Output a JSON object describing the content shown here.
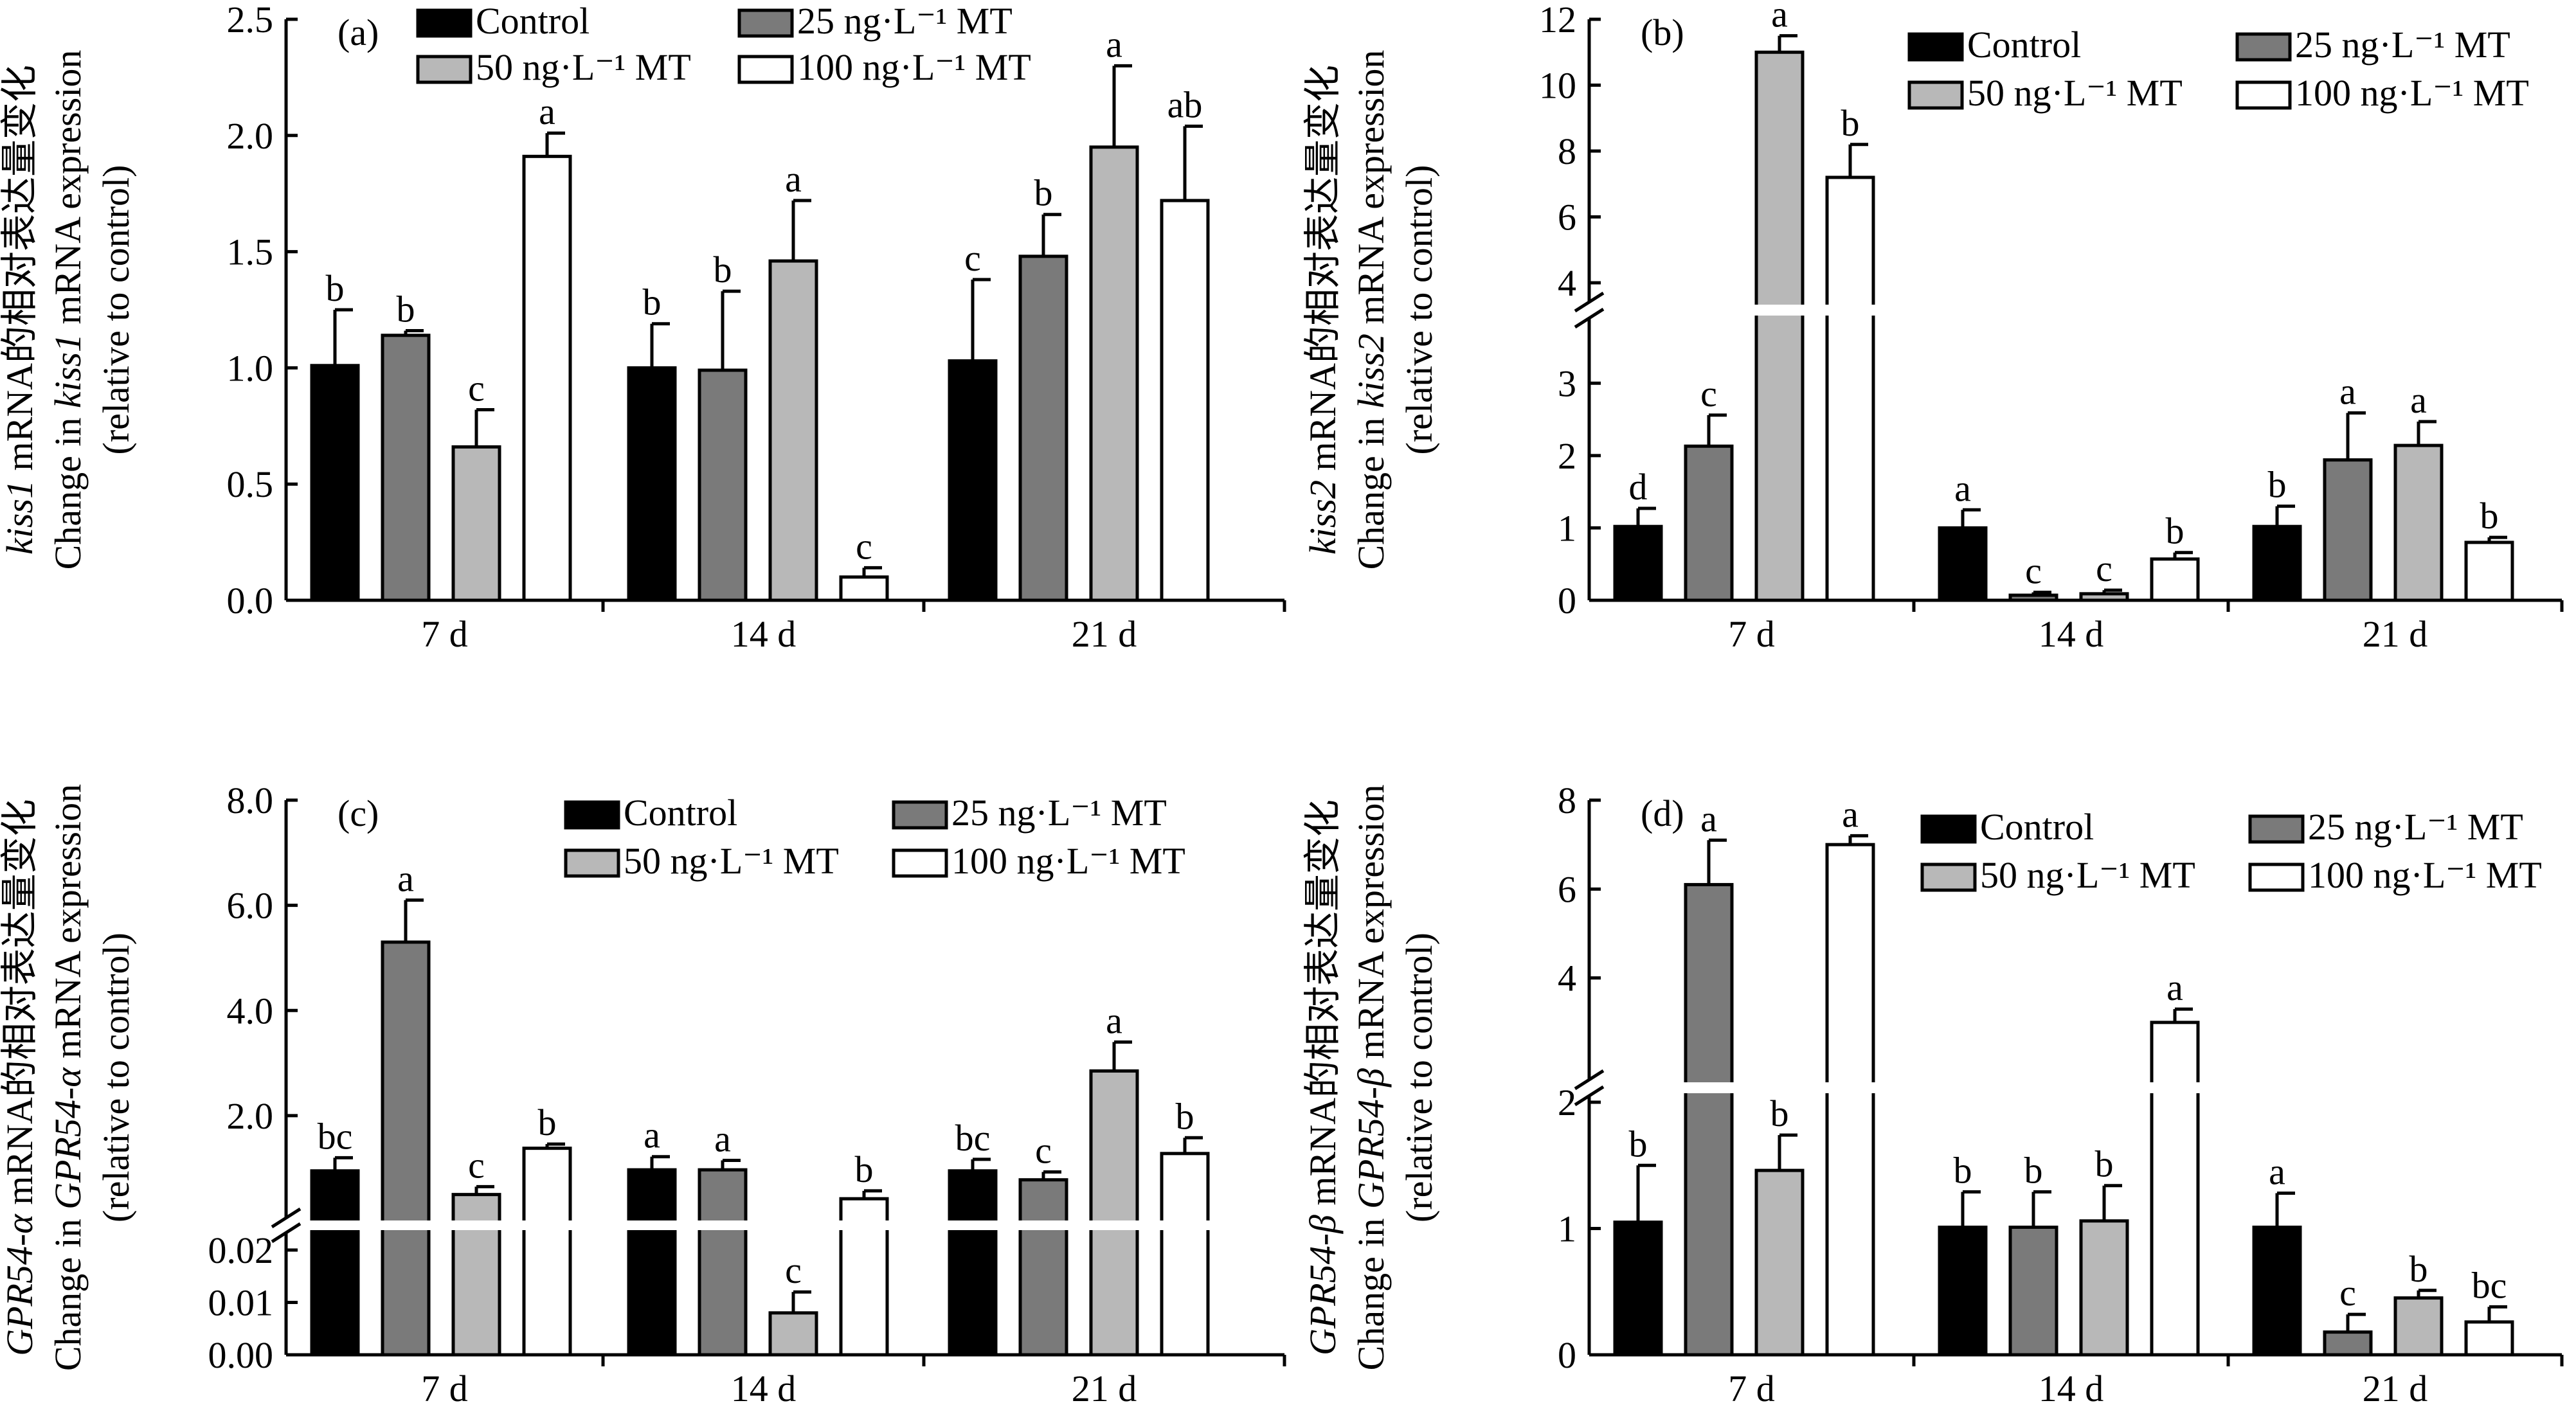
{
  "chart_data": [
    {
      "type": "bar",
      "panel": "(a)",
      "ylabel": {
        "gene": "kiss1",
        "cn": "mRNA的相对表达量变化",
        "en_prefix": "Change in ",
        "en_suffix": " mRNA expression",
        "sub": "(relative to control)"
      },
      "categories": [
        "7 d",
        "14 d",
        "21 d"
      ],
      "series": [
        {
          "name": "Control",
          "values": [
            1.01,
            1.0,
            1.03
          ],
          "errors": [
            0.24,
            0.19,
            0.35
          ],
          "letters": [
            "b",
            "b",
            "c"
          ]
        },
        {
          "name": "25 ng·L⁻¹ MT",
          "values": [
            1.14,
            0.99,
            1.48
          ],
          "errors": [
            0.02,
            0.34,
            0.18
          ],
          "letters": [
            "b",
            "b",
            "b"
          ]
        },
        {
          "name": "50 ng·L⁻¹ MT",
          "values": [
            0.66,
            1.46,
            1.95
          ],
          "errors": [
            0.16,
            0.26,
            0.35
          ],
          "letters": [
            "c",
            "a",
            "a"
          ]
        },
        {
          "name": "100 ng·L⁻¹ MT",
          "values": [
            1.91,
            0.1,
            1.72
          ],
          "errors": [
            0.1,
            0.04,
            0.32
          ],
          "letters": [
            "a",
            "c",
            "ab"
          ]
        }
      ],
      "yticks": [
        "0.0",
        "0.5",
        "1.0",
        "1.5",
        "2.0",
        "2.5"
      ],
      "ylim": [
        0,
        2.5
      ]
    },
    {
      "type": "bar",
      "panel": "(b)",
      "ylabel": {
        "gene": "kiss2",
        "cn": "mRNA的相对表达量变化",
        "en_prefix": "Change in ",
        "en_suffix": " mRNA expression",
        "sub": "(relative to control)"
      },
      "categories": [
        "7 d",
        "14 d",
        "21 d"
      ],
      "axis_break": {
        "lower": [
          0,
          3.5
        ],
        "upper": [
          4,
          12
        ]
      },
      "series": [
        {
          "name": "Control",
          "values": [
            1.02,
            1.0,
            1.02
          ],
          "errors": [
            0.25,
            0.25,
            0.28
          ],
          "letters": [
            "d",
            "a",
            "b"
          ]
        },
        {
          "name": "25 ng·L⁻¹ MT",
          "values": [
            2.13,
            0.07,
            1.94
          ],
          "errors": [
            0.43,
            0.04,
            0.65
          ],
          "letters": [
            "c",
            "c",
            "a"
          ]
        },
        {
          "name": "50 ng·L⁻¹ MT",
          "values": [
            11.0,
            0.09,
            2.14
          ],
          "errors": [
            0.5,
            0.05,
            0.33
          ],
          "letters": [
            "a",
            "c",
            "a"
          ]
        },
        {
          "name": "100 ng·L⁻¹ MT",
          "values": [
            7.2,
            0.57,
            0.8
          ],
          "errors": [
            1.0,
            0.09,
            0.07
          ],
          "letters": [
            "b",
            "b",
            "b"
          ]
        }
      ],
      "yticks_lower": [
        "0",
        "1",
        "2",
        "3"
      ],
      "yticks_upper": [
        "4",
        "6",
        "8",
        "10",
        "12"
      ]
    },
    {
      "type": "bar",
      "panel": "(c)",
      "ylabel": {
        "gene": "GPR54-α",
        "cn": "mRNA的相对表达量变化",
        "en_prefix": "Change in ",
        "en_suffix": " mRNA expression",
        "sub": "(relative to control)"
      },
      "categories": [
        "7 d",
        "14 d",
        "21 d"
      ],
      "axis_break": {
        "lower": [
          0,
          0.02
        ],
        "upper": [
          0.3,
          8.0
        ]
      },
      "series": [
        {
          "name": "Control",
          "values": [
            0.95,
            0.97,
            0.95
          ],
          "errors": [
            0.25,
            0.25,
            0.22
          ],
          "letters": [
            "bc",
            "a",
            "bc"
          ]
        },
        {
          "name": "25 ng·L⁻¹ MT",
          "values": [
            5.3,
            0.97,
            0.78
          ],
          "errors": [
            0.8,
            0.18,
            0.15
          ],
          "letters": [
            "a",
            "a",
            "c"
          ]
        },
        {
          "name": "50 ng·L⁻¹ MT",
          "values": [
            0.5,
            0.008,
            2.85
          ],
          "errors": [
            0.15,
            0.004,
            0.55
          ],
          "letters": [
            "c",
            "c",
            "a"
          ]
        },
        {
          "name": "100 ng·L⁻¹ MT",
          "values": [
            1.38,
            0.42,
            1.28
          ],
          "errors": [
            0.08,
            0.15,
            0.3
          ],
          "letters": [
            "b",
            "b",
            "b"
          ]
        }
      ],
      "yticks_lower": [
        "0.00",
        "0.01",
        "0.02"
      ],
      "yticks_upper": [
        "2.0",
        "4.0",
        "6.0",
        "8.0"
      ]
    },
    {
      "type": "bar",
      "panel": "(d)",
      "ylabel": {
        "gene": "GPR54-β",
        "cn": "mRNA的相对表达量变化",
        "en_prefix": "Change in ",
        "en_suffix": " mRNA expression",
        "sub": "(relative to control)"
      },
      "categories": [
        "7 d",
        "14 d",
        "21 d"
      ],
      "axis_break": {
        "lower": [
          0,
          2
        ],
        "upper": [
          2,
          8
        ]
      },
      "series": [
        {
          "name": "Control",
          "values": [
            1.05,
            1.01,
            1.01
          ],
          "errors": [
            0.45,
            0.28,
            0.27
          ],
          "letters": [
            "b",
            "b",
            "a"
          ]
        },
        {
          "name": "25 ng·L⁻¹ MT",
          "values": [
            6.1,
            1.01,
            0.18
          ],
          "errors": [
            1.0,
            0.28,
            0.14
          ],
          "letters": [
            "a",
            "b",
            "c"
          ]
        },
        {
          "name": "50 ng·L⁻¹ MT",
          "values": [
            1.46,
            1.06,
            0.45
          ],
          "errors": [
            0.28,
            0.28,
            0.06
          ],
          "letters": [
            "b",
            "b",
            "b"
          ]
        },
        {
          "name": "100 ng·L⁻¹ MT",
          "values": [
            7.0,
            3.0,
            0.26
          ],
          "errors": [
            0.2,
            0.3,
            0.12
          ],
          "letters": [
            "a",
            "a",
            "bc"
          ]
        }
      ],
      "yticks_lower": [
        "0",
        "1",
        "2"
      ],
      "yticks_upper": [
        "2",
        "4",
        "6",
        "8"
      ]
    }
  ],
  "colors": {
    "control": "#000000",
    "mt25": "#7a7a7a",
    "mt50": "#b8b8b8",
    "mt100": "#ffffff"
  }
}
